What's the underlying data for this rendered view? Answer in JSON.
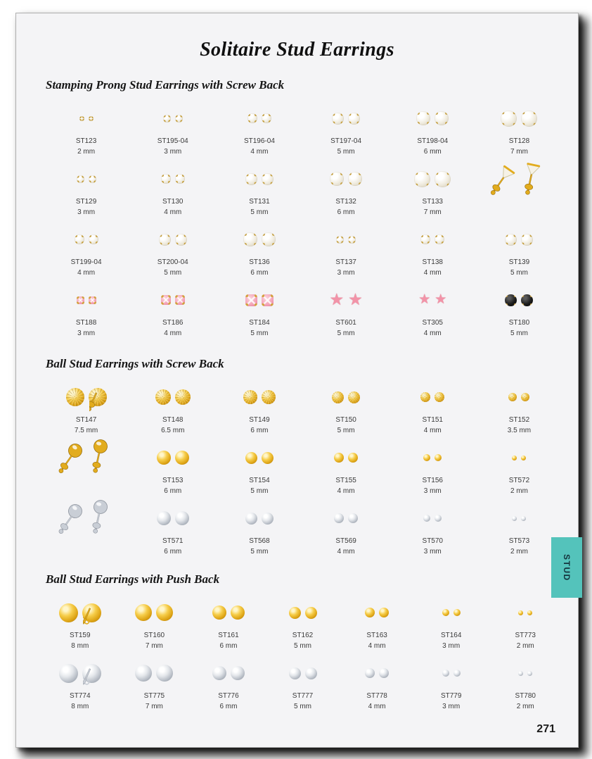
{
  "page": {
    "title": "Solitaire Stud Earrings",
    "page_number": "271",
    "side_tab": "STUD"
  },
  "colors": {
    "tab_teal": "#54c3bb",
    "gold": "#e2ac1e",
    "gold_dark": "#9a6e08",
    "silver": "#c9ced6",
    "silver_dark": "#8b919b",
    "pink": "#f4a6ba",
    "black_stone": "#161616",
    "page_bg": "#f4f4f6"
  },
  "sections": [
    {
      "heading": "Stamping Prong Stud Earrings with Screw Back",
      "rows": [
        {
          "items": [
            {
              "code": "ST123",
              "size": "2 mm",
              "mm": 2,
              "style": "prong-white"
            },
            {
              "code": "ST195-04",
              "size": "3 mm",
              "mm": 3,
              "style": "prong-white"
            },
            {
              "code": "ST196-04",
              "size": "4 mm",
              "mm": 4,
              "style": "prong-white"
            },
            {
              "code": "ST197-04",
              "size": "5 mm",
              "mm": 5,
              "style": "prong-white"
            },
            {
              "code": "ST198-04",
              "size": "6 mm",
              "mm": 6,
              "style": "prong-white"
            },
            {
              "code": "ST128",
              "size": "7 mm",
              "mm": 7,
              "style": "prong-white"
            }
          ]
        },
        {
          "items": [
            {
              "code": "ST129",
              "size": "3 mm",
              "mm": 3,
              "style": "prong-white"
            },
            {
              "code": "ST130",
              "size": "4 mm",
              "mm": 4,
              "style": "prong-white"
            },
            {
              "code": "ST131",
              "size": "5 mm",
              "mm": 5,
              "style": "prong-white"
            },
            {
              "code": "ST132",
              "size": "6 mm",
              "mm": 6,
              "style": "prong-white"
            },
            {
              "code": "ST133",
              "size": "7 mm",
              "mm": 7,
              "style": "prong-white"
            },
            {
              "photo": "gold-stone-screw-back-side-view"
            }
          ]
        },
        {
          "items": [
            {
              "code": "ST199-04",
              "size": "4 mm",
              "mm": 4,
              "style": "prong-white"
            },
            {
              "code": "ST200-04",
              "size": "5 mm",
              "mm": 5,
              "style": "prong-white"
            },
            {
              "code": "ST136",
              "size": "6 mm",
              "mm": 6,
              "style": "prong-white"
            },
            {
              "code": "ST137",
              "size": "3 mm",
              "mm": 3,
              "style": "prong-white"
            },
            {
              "code": "ST138",
              "size": "4 mm",
              "mm": 4,
              "style": "prong-white"
            },
            {
              "code": "ST139",
              "size": "5 mm",
              "mm": 5,
              "style": "prong-white"
            }
          ]
        },
        {
          "items": [
            {
              "code": "ST188",
              "size": "3 mm",
              "mm": 3,
              "style": "prong-pink"
            },
            {
              "code": "ST186",
              "size": "4 mm",
              "mm": 4,
              "style": "prong-pink"
            },
            {
              "code": "ST184",
              "size": "5 mm",
              "mm": 5,
              "style": "prong-pink"
            },
            {
              "code": "ST601",
              "size": "5 mm",
              "mm": 5,
              "style": "star-pink"
            },
            {
              "code": "ST305",
              "size": "4 mm",
              "mm": 4,
              "style": "star-pink"
            },
            {
              "code": "ST180",
              "size": "5 mm",
              "mm": 5,
              "style": "prong-black"
            }
          ]
        }
      ]
    },
    {
      "heading": "Ball Stud Earrings with Screw Back",
      "rows": [
        {
          "items": [
            {
              "code": "ST147",
              "size": "7.5 mm",
              "mm": 7.5,
              "style": "ball-gold-fluted",
              "back": "screw"
            },
            {
              "code": "ST148",
              "size": "6.5 mm",
              "mm": 6.5,
              "style": "ball-gold-fluted"
            },
            {
              "code": "ST149",
              "size": "6 mm",
              "mm": 6,
              "style": "ball-gold-fluted"
            },
            {
              "code": "ST150",
              "size": "5 mm",
              "mm": 5,
              "style": "ball-gold-fluted"
            },
            {
              "code": "ST151",
              "size": "4 mm",
              "mm": 4,
              "style": "ball-gold-fluted"
            },
            {
              "code": "ST152",
              "size": "3.5 mm",
              "mm": 3.5,
              "style": "ball-gold-fluted"
            }
          ]
        },
        {
          "items": [
            {
              "photo": "gold-ball-screw-back-side-view"
            },
            {
              "code": "ST153",
              "size": "6 mm",
              "mm": 6,
              "style": "ball-gold"
            },
            {
              "code": "ST154",
              "size": "5 mm",
              "mm": 5,
              "style": "ball-gold"
            },
            {
              "code": "ST155",
              "size": "4 mm",
              "mm": 4,
              "style": "ball-gold"
            },
            {
              "code": "ST156",
              "size": "3 mm",
              "mm": 3,
              "style": "ball-gold"
            },
            {
              "code": "ST572",
              "size": "2 mm",
              "mm": 2,
              "style": "ball-gold"
            }
          ]
        },
        {
          "items": [
            {
              "photo": "silver-ball-screw-back-side-view"
            },
            {
              "code": "ST571",
              "size": "6 mm",
              "mm": 6,
              "style": "ball-silver"
            },
            {
              "code": "ST568",
              "size": "5 mm",
              "mm": 5,
              "style": "ball-silver"
            },
            {
              "code": "ST569",
              "size": "4 mm",
              "mm": 4,
              "style": "ball-silver"
            },
            {
              "code": "ST570",
              "size": "3 mm",
              "mm": 3,
              "style": "ball-silver"
            },
            {
              "code": "ST573",
              "size": "2 mm",
              "mm": 2,
              "style": "ball-silver"
            }
          ]
        }
      ]
    },
    {
      "heading": "Ball Stud Earrings with Push Back",
      "rows": [
        {
          "items": [
            {
              "code": "ST159",
              "size": "8 mm",
              "mm": 8,
              "style": "ball-gold",
              "back": "push"
            },
            {
              "code": "ST160",
              "size": "7 mm",
              "mm": 7,
              "style": "ball-gold"
            },
            {
              "code": "ST161",
              "size": "6 mm",
              "mm": 6,
              "style": "ball-gold"
            },
            {
              "code": "ST162",
              "size": "5 mm",
              "mm": 5,
              "style": "ball-gold"
            },
            {
              "code": "ST163",
              "size": "4 mm",
              "mm": 4,
              "style": "ball-gold"
            },
            {
              "code": "ST164",
              "size": "3 mm",
              "mm": 3,
              "style": "ball-gold"
            },
            {
              "code": "ST773",
              "size": "2 mm",
              "mm": 2,
              "style": "ball-gold"
            }
          ]
        },
        {
          "items": [
            {
              "code": "ST774",
              "size": "8 mm",
              "mm": 8,
              "style": "ball-silver",
              "back": "push"
            },
            {
              "code": "ST775",
              "size": "7 mm",
              "mm": 7,
              "style": "ball-silver"
            },
            {
              "code": "ST776",
              "size": "6 mm",
              "mm": 6,
              "style": "ball-silver"
            },
            {
              "code": "ST777",
              "size": "5 mm",
              "mm": 5,
              "style": "ball-silver"
            },
            {
              "code": "ST778",
              "size": "4 mm",
              "mm": 4,
              "style": "ball-silver"
            },
            {
              "code": "ST779",
              "size": "3 mm",
              "mm": 3,
              "style": "ball-silver"
            },
            {
              "code": "ST780",
              "size": "2 mm",
              "mm": 2,
              "style": "ball-silver"
            }
          ]
        }
      ]
    }
  ]
}
